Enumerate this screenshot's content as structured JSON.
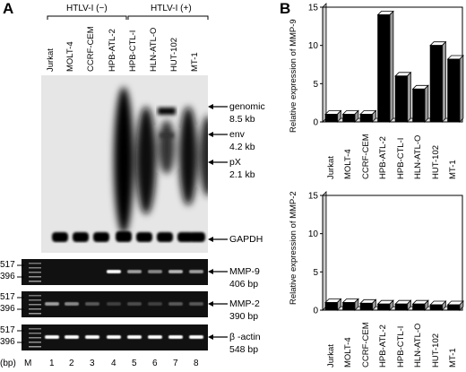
{
  "panelA": {
    "letter": "A",
    "group_neg": "HTLV-I (−)",
    "group_pos": "HTLV-I (+)",
    "lanes": [
      "Jurkat",
      "MOLT-4",
      "CCRF-CEM",
      "HPB-ATL-2",
      "HPB-CTL-I",
      "HLN-ATL-O",
      "HUT-102",
      "MT-1"
    ],
    "northern_labels": [
      {
        "name": "genomic",
        "size": "8.5 kb"
      },
      {
        "name": "env",
        "size": "4.2 kb"
      },
      {
        "name": "pX",
        "size": "2.1 kb"
      }
    ],
    "gapdh_label": "GAPDH",
    "gels": [
      {
        "name": "MMP-9",
        "size": "406 bp",
        "markers": [
          "517",
          "396"
        ]
      },
      {
        "name": "MMP-2",
        "size": "390 bp",
        "markers": [
          "517",
          "396"
        ]
      },
      {
        "name": "β -actin",
        "size": "548 bp",
        "markers": [
          "517",
          "396"
        ]
      }
    ],
    "bp_label": "(bp)",
    "lane_numbers": [
      "M",
      "1",
      "2",
      "3",
      "4",
      "5",
      "6",
      "7",
      "8"
    ]
  },
  "panelB": {
    "letter": "B",
    "chart_data": [
      {
        "type": "bar",
        "ylabel": "Relative expression of MMP-9",
        "categories": [
          "Jurkat",
          "MOLT-4",
          "CCRF-CEM",
          "HPB-ATL-2",
          "HPB-CTL-I",
          "HLN-ATL-O",
          "HUT-102",
          "MT-1"
        ],
        "values": [
          1,
          1,
          1,
          14,
          6,
          4.3,
          10,
          8.2
        ],
        "ylim": [
          0,
          15
        ],
        "yticks": [
          0,
          5,
          10,
          15
        ]
      },
      {
        "type": "bar",
        "ylabel": "Relative expression of MMP-2",
        "categories": [
          "Jurkat",
          "MOLT-4",
          "CCRF-CEM",
          "HPB-ATL-2",
          "HPB-CTL-I",
          "HLN-ATL-O",
          "HUT-102",
          "MT-1"
        ],
        "values": [
          1,
          1,
          0.9,
          0.8,
          0.8,
          0.8,
          0.7,
          0.7
        ],
        "ylim": [
          0,
          15
        ],
        "yticks": [
          0,
          5,
          10,
          15
        ]
      }
    ]
  }
}
